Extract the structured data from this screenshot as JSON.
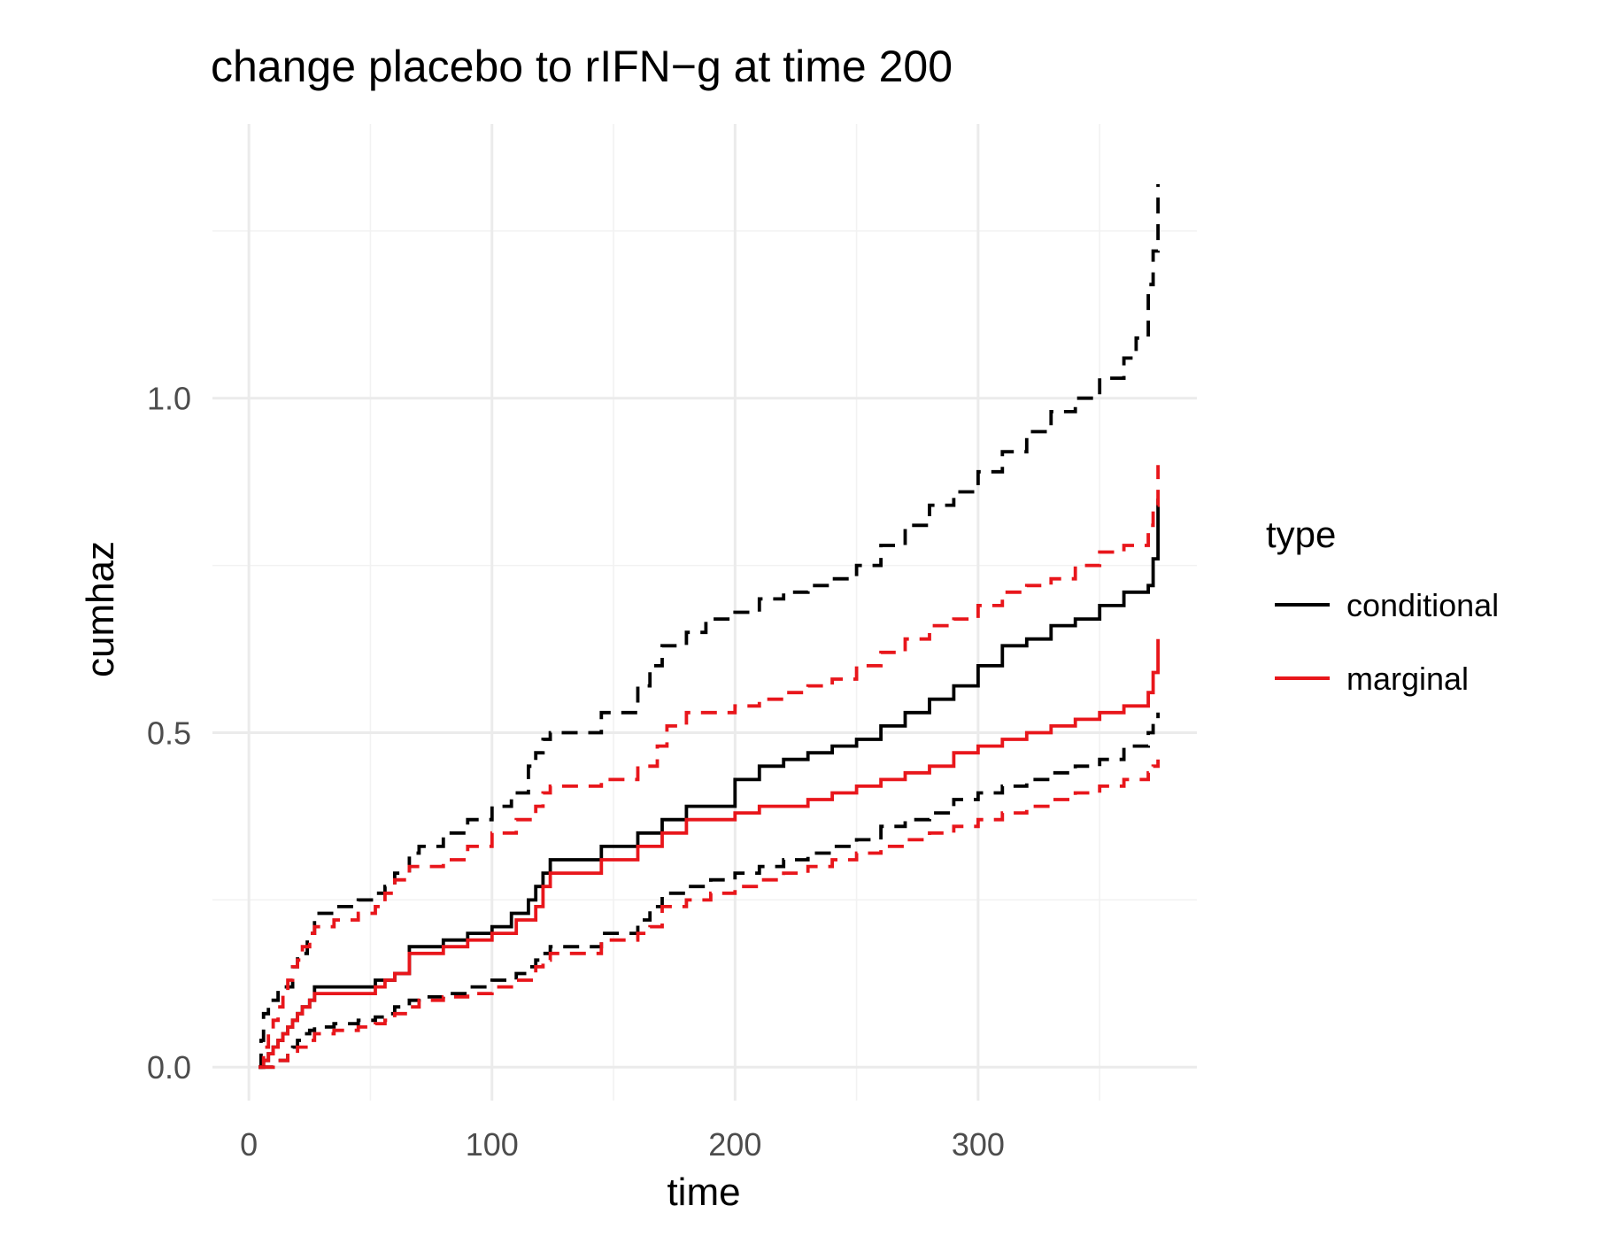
{
  "chart_data": {
    "type": "line",
    "title": "change placebo to rIFN−g at time 200",
    "xlabel": "time",
    "ylabel": "cumhaz",
    "xlim": [
      -15,
      390
    ],
    "ylim": [
      -0.05,
      1.41
    ],
    "x_ticks": [
      0,
      100,
      200,
      300
    ],
    "x_tick_labels": [
      "0",
      "100",
      "200",
      "300"
    ],
    "y_ticks": [
      0.0,
      0.5,
      1.0
    ],
    "y_tick_labels": [
      "0.0",
      "0.5",
      "1.0"
    ],
    "grid": true,
    "legend": {
      "title": "type",
      "position": "right",
      "entries": [
        {
          "label": "conditional",
          "color": "#000000"
        },
        {
          "label": "marginal",
          "color": "#e8161b"
        }
      ]
    },
    "series": [
      {
        "type": "conditional",
        "role": "estimate",
        "color": "#000000",
        "dashed": false,
        "x": [
          4,
          6,
          8,
          10,
          12,
          14,
          16,
          18,
          20,
          22,
          25,
          27,
          38,
          48,
          52,
          56,
          60,
          66,
          70,
          80,
          90,
          100,
          108,
          115,
          118,
          121,
          124,
          145,
          160,
          170,
          180,
          200,
          210,
          220,
          230,
          240,
          250,
          260,
          270,
          280,
          290,
          300,
          310,
          320,
          330,
          340,
          350,
          360,
          370,
          372,
          374
        ],
        "y": [
          0.0,
          0.01,
          0.02,
          0.03,
          0.04,
          0.05,
          0.06,
          0.07,
          0.08,
          0.09,
          0.1,
          0.12,
          0.12,
          0.12,
          0.13,
          0.13,
          0.14,
          0.18,
          0.18,
          0.19,
          0.2,
          0.21,
          0.23,
          0.25,
          0.27,
          0.29,
          0.31,
          0.33,
          0.35,
          0.37,
          0.39,
          0.43,
          0.45,
          0.46,
          0.47,
          0.48,
          0.49,
          0.51,
          0.53,
          0.55,
          0.57,
          0.6,
          0.63,
          0.64,
          0.66,
          0.67,
          0.69,
          0.71,
          0.72,
          0.76,
          0.85
        ]
      },
      {
        "type": "marginal",
        "role": "estimate",
        "color": "#e8161b",
        "dashed": false,
        "x": [
          4,
          6,
          8,
          10,
          12,
          14,
          16,
          18,
          20,
          22,
          25,
          27,
          38,
          52,
          56,
          60,
          66,
          70,
          80,
          90,
          100,
          110,
          118,
          121,
          124,
          145,
          160,
          170,
          180,
          200,
          210,
          220,
          230,
          240,
          250,
          260,
          270,
          280,
          290,
          300,
          310,
          320,
          330,
          340,
          350,
          360,
          370,
          372,
          374
        ],
        "y": [
          0.0,
          0.01,
          0.02,
          0.03,
          0.04,
          0.05,
          0.06,
          0.07,
          0.08,
          0.09,
          0.1,
          0.11,
          0.11,
          0.12,
          0.13,
          0.14,
          0.17,
          0.17,
          0.18,
          0.19,
          0.2,
          0.22,
          0.24,
          0.27,
          0.29,
          0.31,
          0.33,
          0.35,
          0.37,
          0.38,
          0.39,
          0.39,
          0.4,
          0.41,
          0.42,
          0.43,
          0.44,
          0.45,
          0.47,
          0.48,
          0.49,
          0.5,
          0.51,
          0.52,
          0.53,
          0.54,
          0.56,
          0.59,
          0.64
        ]
      },
      {
        "type": "conditional",
        "role": "upper",
        "color": "#000000",
        "dashed": true,
        "x": [
          4,
          5,
          6,
          8,
          12,
          18,
          20,
          24,
          27,
          35,
          45,
          52,
          56,
          60,
          66,
          70,
          80,
          90,
          100,
          108,
          115,
          118,
          121,
          124,
          145,
          160,
          165,
          170,
          180,
          188,
          200,
          210,
          220,
          230,
          240,
          250,
          260,
          270,
          280,
          290,
          300,
          310,
          320,
          330,
          340,
          350,
          360,
          365,
          370,
          372,
          374
        ],
        "y": [
          0.0,
          0.04,
          0.08,
          0.1,
          0.12,
          0.15,
          0.17,
          0.2,
          0.23,
          0.24,
          0.25,
          0.26,
          0.27,
          0.29,
          0.32,
          0.33,
          0.35,
          0.37,
          0.39,
          0.41,
          0.45,
          0.47,
          0.49,
          0.5,
          0.53,
          0.57,
          0.6,
          0.63,
          0.65,
          0.67,
          0.68,
          0.7,
          0.71,
          0.72,
          0.73,
          0.75,
          0.78,
          0.81,
          0.84,
          0.86,
          0.89,
          0.92,
          0.95,
          0.98,
          1.0,
          1.03,
          1.06,
          1.09,
          1.17,
          1.22,
          1.32
        ]
      },
      {
        "type": "marginal",
        "role": "upper",
        "color": "#e8161b",
        "dashed": true,
        "x": [
          4,
          6,
          8,
          10,
          12,
          14,
          16,
          18,
          20,
          22,
          25,
          27,
          35,
          45,
          52,
          56,
          60,
          66,
          70,
          80,
          90,
          100,
          110,
          118,
          121,
          124,
          145,
          160,
          168,
          172,
          180,
          200,
          210,
          220,
          230,
          240,
          250,
          260,
          270,
          280,
          290,
          300,
          310,
          320,
          330,
          340,
          350,
          360,
          370,
          372,
          374
        ],
        "y": [
          0.0,
          0.03,
          0.05,
          0.07,
          0.09,
          0.11,
          0.13,
          0.15,
          0.16,
          0.18,
          0.2,
          0.21,
          0.22,
          0.23,
          0.24,
          0.26,
          0.28,
          0.3,
          0.3,
          0.31,
          0.33,
          0.35,
          0.37,
          0.39,
          0.41,
          0.42,
          0.43,
          0.45,
          0.48,
          0.51,
          0.53,
          0.54,
          0.55,
          0.56,
          0.57,
          0.58,
          0.6,
          0.62,
          0.64,
          0.66,
          0.67,
          0.69,
          0.71,
          0.72,
          0.73,
          0.75,
          0.77,
          0.78,
          0.81,
          0.84,
          0.9
        ]
      },
      {
        "type": "conditional",
        "role": "lower",
        "color": "#000000",
        "dashed": true,
        "x": [
          4,
          10,
          16,
          18,
          20,
          22,
          25,
          27,
          35,
          45,
          52,
          56,
          60,
          66,
          70,
          80,
          90,
          100,
          110,
          115,
          118,
          121,
          124,
          145,
          160,
          165,
          170,
          180,
          190,
          200,
          210,
          220,
          230,
          240,
          250,
          260,
          270,
          280,
          290,
          300,
          310,
          320,
          330,
          340,
          350,
          360,
          370,
          372,
          374
        ],
        "y": [
          0.0,
          0.01,
          0.02,
          0.03,
          0.04,
          0.05,
          0.055,
          0.06,
          0.065,
          0.07,
          0.075,
          0.08,
          0.09,
          0.1,
          0.105,
          0.11,
          0.12,
          0.13,
          0.14,
          0.15,
          0.16,
          0.17,
          0.18,
          0.2,
          0.22,
          0.24,
          0.26,
          0.27,
          0.28,
          0.29,
          0.3,
          0.31,
          0.32,
          0.33,
          0.34,
          0.36,
          0.37,
          0.38,
          0.4,
          0.41,
          0.42,
          0.43,
          0.44,
          0.45,
          0.46,
          0.48,
          0.5,
          0.52,
          0.53
        ]
      },
      {
        "type": "marginal",
        "role": "lower",
        "color": "#e8161b",
        "dashed": true,
        "x": [
          4,
          10,
          16,
          20,
          25,
          27,
          35,
          45,
          52,
          56,
          60,
          66,
          70,
          80,
          90,
          100,
          110,
          118,
          121,
          124,
          145,
          160,
          165,
          170,
          180,
          190,
          200,
          210,
          220,
          230,
          240,
          250,
          260,
          270,
          280,
          290,
          300,
          310,
          320,
          330,
          340,
          350,
          360,
          370,
          372,
          374
        ],
        "y": [
          0.0,
          0.01,
          0.02,
          0.03,
          0.04,
          0.05,
          0.055,
          0.06,
          0.065,
          0.07,
          0.08,
          0.09,
          0.1,
          0.105,
          0.11,
          0.12,
          0.13,
          0.15,
          0.16,
          0.17,
          0.19,
          0.2,
          0.21,
          0.24,
          0.25,
          0.26,
          0.27,
          0.28,
          0.29,
          0.3,
          0.31,
          0.32,
          0.33,
          0.34,
          0.35,
          0.36,
          0.37,
          0.38,
          0.39,
          0.4,
          0.41,
          0.42,
          0.43,
          0.44,
          0.45,
          0.46
        ]
      }
    ]
  }
}
